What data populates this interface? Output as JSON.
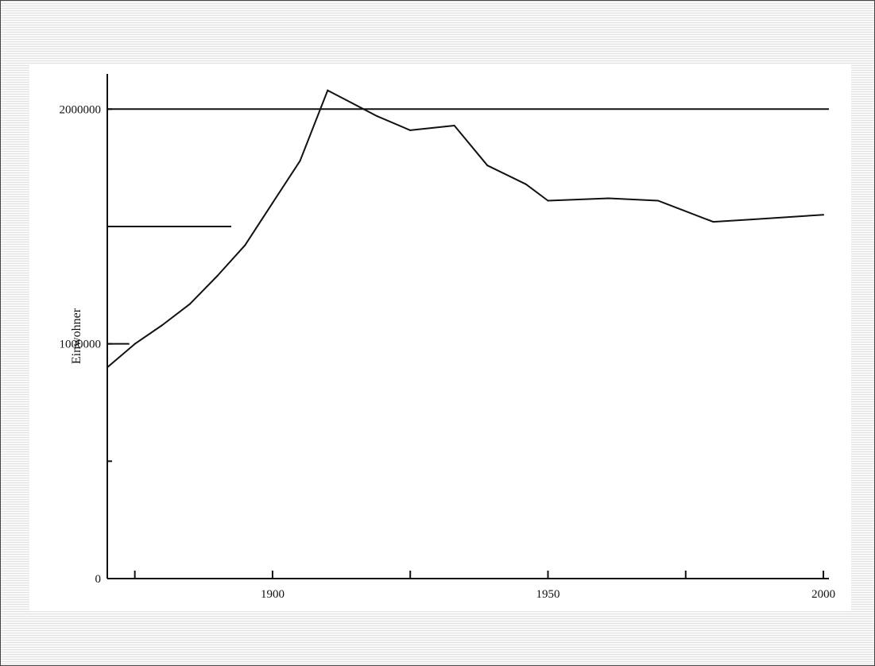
{
  "chart_data": {
    "type": "line",
    "ylabel": "Einwohner",
    "xlabel": "",
    "title": "",
    "xlim": [
      1870,
      2001
    ],
    "ylim": [
      0,
      2150000
    ],
    "x_ticks": [
      1875,
      1900,
      1925,
      1950,
      1975,
      2000
    ],
    "x_tick_labels": [
      {
        "x": 1900,
        "label": "1900"
      },
      {
        "x": 1950,
        "label": "1950"
      },
      {
        "x": 2000,
        "label": "2000"
      }
    ],
    "y_ticks": [
      0,
      500000,
      1000000,
      1500000,
      2000000
    ],
    "y_tick_labels": [
      {
        "y": 0,
        "label": "0"
      },
      {
        "y": 1000000,
        "label": "1000000"
      },
      {
        "y": 2000000,
        "label": "2000000"
      }
    ],
    "reference_lines": [
      {
        "y": 2000000,
        "x_start": 1870,
        "x_end": 2001
      },
      {
        "y": 1500000,
        "x_start": 1870,
        "x_end": 1892.5
      },
      {
        "y": 1000000,
        "x_start": 1870,
        "x_end": 1874
      }
    ],
    "grid": false,
    "series": [
      {
        "color": "#111111",
        "x": [
          1870,
          1875,
          1880,
          1885,
          1890,
          1895,
          1900,
          1905,
          1910,
          1919,
          1925,
          1933,
          1939,
          1946,
          1950,
          1961,
          1970,
          1980,
          1987,
          2000
        ],
        "y": [
          900000,
          1000000,
          1080000,
          1170000,
          1290000,
          1420000,
          1600000,
          1780000,
          2080000,
          1970000,
          1910000,
          1930000,
          1760000,
          1680000,
          1610000,
          1620000,
          1610000,
          1520000,
          1530000,
          1550000
        ]
      }
    ]
  }
}
